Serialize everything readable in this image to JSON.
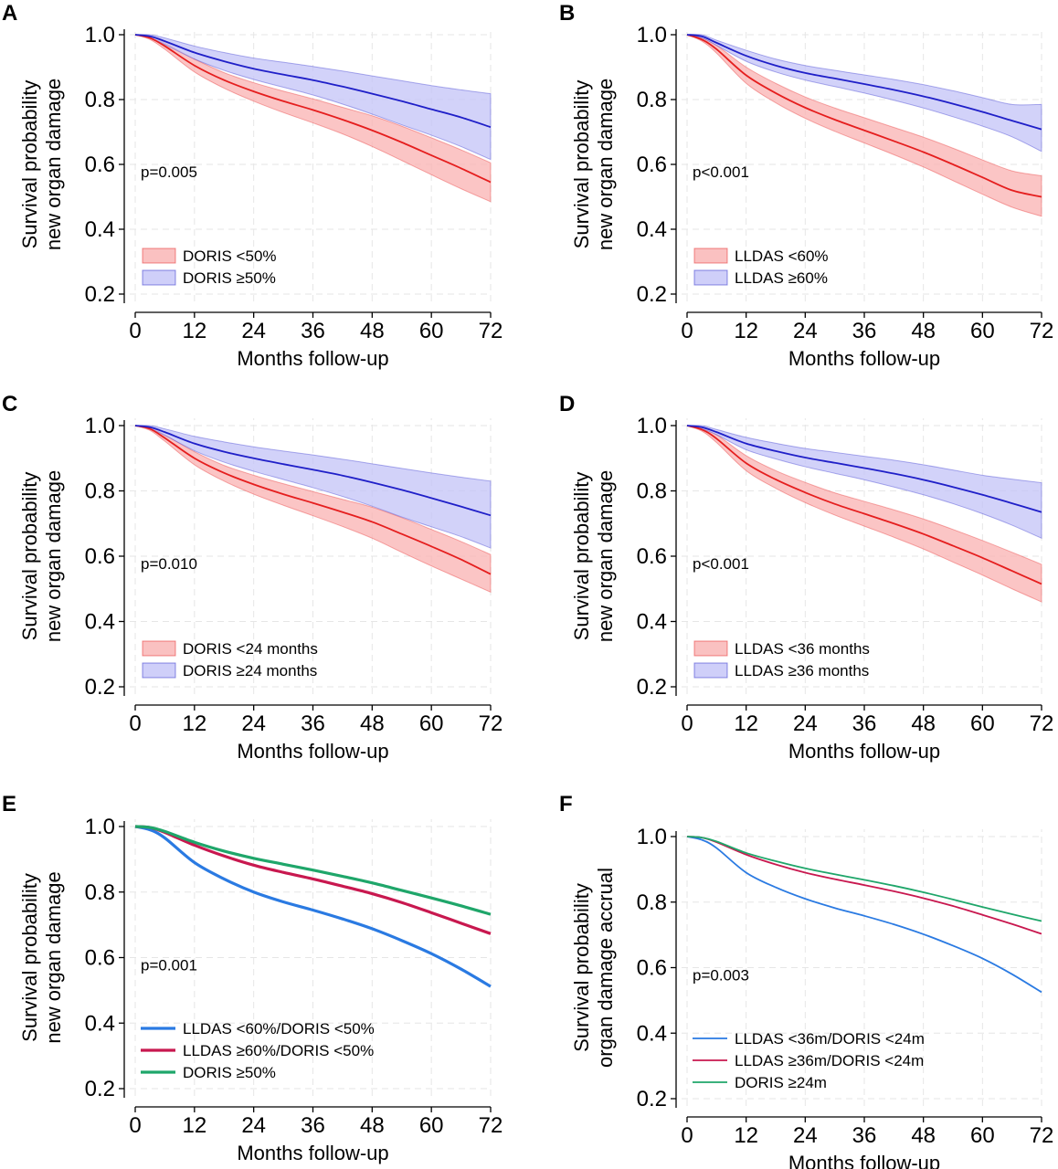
{
  "chart_data": [
    {
      "panel": "A",
      "type": "line",
      "xlabel": "Months follow-up",
      "ylabel": [
        "Survival probability",
        "new organ damage"
      ],
      "xlim": [
        0,
        72
      ],
      "ylim": [
        0.2,
        1.0
      ],
      "xticks": [
        0,
        12,
        24,
        36,
        48,
        60,
        72
      ],
      "yticks": [
        0.2,
        0.4,
        0.6,
        0.8,
        1.0
      ],
      "annotation": "p=0.005",
      "legend_style": "band",
      "series": [
        {
          "name": "DORIS <50%",
          "color": "#e51e1e",
          "fill": "#f9b1b1",
          "x": [
            0,
            3,
            6,
            12,
            18,
            24,
            30,
            36,
            42,
            48,
            54,
            60,
            66,
            72
          ],
          "values": [
            1.0,
            0.99,
            0.965,
            0.905,
            0.86,
            0.825,
            0.795,
            0.768,
            0.738,
            0.705,
            0.668,
            0.628,
            0.588,
            0.545
          ],
          "lower": [
            1.0,
            0.985,
            0.955,
            0.885,
            0.835,
            0.795,
            0.76,
            0.728,
            0.694,
            0.655,
            0.612,
            0.568,
            0.525,
            0.485
          ],
          "upper": [
            1.0,
            0.995,
            0.975,
            0.925,
            0.883,
            0.852,
            0.826,
            0.802,
            0.776,
            0.75,
            0.718,
            0.682,
            0.645,
            0.605
          ]
        },
        {
          "name": "DORIS ≥50%",
          "color": "#1f1fc8",
          "fill": "#c3c3f7",
          "x": [
            0,
            3,
            6,
            12,
            18,
            24,
            30,
            36,
            42,
            48,
            54,
            60,
            66,
            72
          ],
          "values": [
            1.0,
            0.995,
            0.98,
            0.945,
            0.918,
            0.895,
            0.877,
            0.86,
            0.84,
            0.818,
            0.795,
            0.77,
            0.745,
            0.715
          ],
          "lower": [
            1.0,
            0.99,
            0.97,
            0.925,
            0.89,
            0.862,
            0.838,
            0.814,
            0.786,
            0.755,
            0.722,
            0.69,
            0.655,
            0.615
          ],
          "upper": [
            1.0,
            1.0,
            0.99,
            0.965,
            0.945,
            0.928,
            0.915,
            0.902,
            0.888,
            0.873,
            0.858,
            0.843,
            0.83,
            0.818
          ]
        }
      ]
    },
    {
      "panel": "B",
      "type": "line",
      "xlabel": "Months follow-up",
      "ylabel": [
        "Survival probability",
        "new organ damage"
      ],
      "xlim": [
        0,
        72
      ],
      "ylim": [
        0.2,
        1.0
      ],
      "xticks": [
        0,
        12,
        24,
        36,
        48,
        60,
        72
      ],
      "yticks": [
        0.2,
        0.4,
        0.6,
        0.8,
        1.0
      ],
      "annotation": "p<0.001",
      "legend_style": "band",
      "series": [
        {
          "name": "LLDAS <60%",
          "color": "#e51e1e",
          "fill": "#f9b1b1",
          "x": [
            0,
            3,
            6,
            12,
            18,
            24,
            30,
            36,
            42,
            48,
            54,
            60,
            66,
            72
          ],
          "values": [
            1.0,
            0.985,
            0.955,
            0.875,
            0.82,
            0.775,
            0.738,
            0.705,
            0.672,
            0.638,
            0.6,
            0.56,
            0.52,
            0.5
          ],
          "lower": [
            1.0,
            0.98,
            0.943,
            0.85,
            0.79,
            0.742,
            0.702,
            0.666,
            0.63,
            0.592,
            0.55,
            0.508,
            0.468,
            0.44
          ],
          "upper": [
            1.0,
            0.99,
            0.967,
            0.9,
            0.85,
            0.808,
            0.774,
            0.744,
            0.714,
            0.684,
            0.65,
            0.614,
            0.58,
            0.565
          ]
        },
        {
          "name": "LLDAS ≥60%",
          "color": "#1f1fc8",
          "fill": "#c3c3f7",
          "x": [
            0,
            3,
            6,
            12,
            18,
            24,
            30,
            36,
            42,
            48,
            54,
            60,
            66,
            72
          ],
          "values": [
            1.0,
            0.995,
            0.975,
            0.935,
            0.905,
            0.882,
            0.865,
            0.848,
            0.83,
            0.81,
            0.787,
            0.762,
            0.735,
            0.708
          ],
          "lower": [
            1.0,
            0.99,
            0.967,
            0.918,
            0.885,
            0.86,
            0.84,
            0.82,
            0.798,
            0.774,
            0.747,
            0.718,
            0.685,
            0.64
          ],
          "upper": [
            1.0,
            1.0,
            0.983,
            0.952,
            0.925,
            0.905,
            0.89,
            0.876,
            0.862,
            0.846,
            0.827,
            0.806,
            0.785,
            0.785
          ]
        }
      ]
    },
    {
      "panel": "C",
      "type": "line",
      "xlabel": "Months follow-up",
      "ylabel": [
        "Survival probability",
        "new organ damage"
      ],
      "xlim": [
        0,
        72
      ],
      "ylim": [
        0.2,
        1.0
      ],
      "xticks": [
        0,
        12,
        24,
        36,
        48,
        60,
        72
      ],
      "yticks": [
        0.2,
        0.4,
        0.6,
        0.8,
        1.0
      ],
      "annotation": "p=0.010",
      "legend_style": "band",
      "series": [
        {
          "name": "DORIS <24 months",
          "color": "#e51e1e",
          "fill": "#f9b1b1",
          "x": [
            0,
            3,
            6,
            12,
            18,
            24,
            30,
            36,
            42,
            48,
            54,
            60,
            66,
            72
          ],
          "values": [
            1.0,
            0.99,
            0.962,
            0.9,
            0.855,
            0.82,
            0.79,
            0.763,
            0.735,
            0.705,
            0.668,
            0.63,
            0.59,
            0.545
          ],
          "lower": [
            1.0,
            0.985,
            0.952,
            0.88,
            0.83,
            0.79,
            0.756,
            0.724,
            0.691,
            0.655,
            0.612,
            0.57,
            0.53,
            0.49
          ],
          "upper": [
            1.0,
            0.995,
            0.972,
            0.92,
            0.878,
            0.848,
            0.822,
            0.798,
            0.774,
            0.75,
            0.718,
            0.682,
            0.645,
            0.605
          ]
        },
        {
          "name": "DORIS ≥24 months",
          "color": "#1f1fc8",
          "fill": "#c3c3f7",
          "x": [
            0,
            3,
            6,
            12,
            18,
            24,
            30,
            36,
            42,
            48,
            54,
            60,
            66,
            72
          ],
          "values": [
            1.0,
            0.995,
            0.98,
            0.945,
            0.92,
            0.9,
            0.882,
            0.865,
            0.847,
            0.826,
            0.803,
            0.778,
            0.752,
            0.725
          ],
          "lower": [
            1.0,
            0.99,
            0.97,
            0.923,
            0.888,
            0.86,
            0.835,
            0.81,
            0.783,
            0.753,
            0.72,
            0.69,
            0.66,
            0.625
          ],
          "upper": [
            1.0,
            1.0,
            0.99,
            0.967,
            0.95,
            0.935,
            0.922,
            0.91,
            0.897,
            0.883,
            0.869,
            0.855,
            0.842,
            0.83
          ]
        }
      ]
    },
    {
      "panel": "D",
      "type": "line",
      "xlabel": "Months follow-up",
      "ylabel": [
        "Survival probability",
        "new organ damage"
      ],
      "xlim": [
        0,
        72
      ],
      "ylim": [
        0.2,
        1.0
      ],
      "xticks": [
        0,
        12,
        24,
        36,
        48,
        60,
        72
      ],
      "yticks": [
        0.2,
        0.4,
        0.6,
        0.8,
        1.0
      ],
      "annotation": "p<0.001",
      "legend_style": "band",
      "series": [
        {
          "name": "LLDAS <36 months",
          "color": "#e51e1e",
          "fill": "#f9b1b1",
          "x": [
            0,
            3,
            6,
            12,
            18,
            24,
            30,
            36,
            42,
            48,
            54,
            60,
            66,
            72
          ],
          "values": [
            1.0,
            0.988,
            0.96,
            0.885,
            0.835,
            0.795,
            0.76,
            0.73,
            0.7,
            0.668,
            0.632,
            0.595,
            0.555,
            0.515
          ],
          "lower": [
            1.0,
            0.983,
            0.948,
            0.862,
            0.808,
            0.764,
            0.726,
            0.692,
            0.658,
            0.622,
            0.582,
            0.542,
            0.5,
            0.46
          ],
          "upper": [
            1.0,
            0.993,
            0.972,
            0.908,
            0.862,
            0.826,
            0.794,
            0.768,
            0.742,
            0.714,
            0.682,
            0.648,
            0.612,
            0.575
          ]
        },
        {
          "name": "LLDAS ≥36 months",
          "color": "#1f1fc8",
          "fill": "#c3c3f7",
          "x": [
            0,
            3,
            6,
            12,
            18,
            24,
            30,
            36,
            42,
            48,
            54,
            60,
            66,
            72
          ],
          "values": [
            1.0,
            0.995,
            0.98,
            0.945,
            0.922,
            0.902,
            0.886,
            0.87,
            0.853,
            0.834,
            0.812,
            0.788,
            0.762,
            0.735
          ],
          "lower": [
            1.0,
            0.99,
            0.972,
            0.926,
            0.898,
            0.874,
            0.854,
            0.834,
            0.812,
            0.788,
            0.761,
            0.73,
            0.695,
            0.655
          ],
          "upper": [
            1.0,
            1.0,
            0.988,
            0.964,
            0.946,
            0.93,
            0.918,
            0.906,
            0.894,
            0.88,
            0.864,
            0.848,
            0.836,
            0.825
          ]
        }
      ]
    },
    {
      "panel": "E",
      "type": "line",
      "xlabel": "Months follow-up",
      "ylabel": [
        "Survival probability",
        "new organ damage"
      ],
      "xlim": [
        0,
        72
      ],
      "ylim": [
        0.2,
        1.0
      ],
      "xticks": [
        0,
        12,
        24,
        36,
        48,
        60,
        72
      ],
      "yticks": [
        0.2,
        0.4,
        0.6,
        0.8,
        1.0
      ],
      "annotation": "p=0.001",
      "legend_style": "line-thick",
      "series": [
        {
          "name": "LLDAS <60%/DORIS <50%",
          "color": "#2a7ae2",
          "x": [
            0,
            3,
            6,
            12,
            18,
            24,
            30,
            36,
            42,
            48,
            54,
            60,
            66,
            72
          ],
          "values": [
            1.0,
            0.99,
            0.965,
            0.89,
            0.84,
            0.8,
            0.77,
            0.745,
            0.718,
            0.688,
            0.652,
            0.612,
            0.565,
            0.512
          ]
        },
        {
          "name": "LLDAS ≥60%/DORIS <50%",
          "color": "#c8184f",
          "x": [
            0,
            3,
            6,
            12,
            18,
            24,
            30,
            36,
            42,
            48,
            54,
            60,
            66,
            72
          ],
          "values": [
            1.0,
            0.997,
            0.982,
            0.943,
            0.91,
            0.882,
            0.86,
            0.84,
            0.818,
            0.795,
            0.768,
            0.737,
            0.705,
            0.673
          ]
        },
        {
          "name": "DORIS ≥50%",
          "color": "#1fa66a",
          "x": [
            0,
            3,
            6,
            12,
            18,
            24,
            30,
            36,
            42,
            48,
            54,
            60,
            66,
            72
          ],
          "values": [
            1.0,
            0.997,
            0.985,
            0.952,
            0.925,
            0.903,
            0.885,
            0.867,
            0.848,
            0.828,
            0.805,
            0.782,
            0.758,
            0.732
          ]
        }
      ]
    },
    {
      "panel": "F",
      "type": "line",
      "xlabel": "Months follow-up",
      "ylabel": [
        "Survival probability",
        "organ damage accrual"
      ],
      "xlim": [
        0,
        72
      ],
      "ylim": [
        0.2,
        1.0
      ],
      "xticks": [
        0,
        12,
        24,
        36,
        48,
        60,
        72
      ],
      "yticks": [
        0.2,
        0.4,
        0.6,
        0.8,
        1.0
      ],
      "annotation": "p=0.003",
      "legend_style": "line-thin",
      "series": [
        {
          "name": "LLDAS <36m/DORIS <24m",
          "color": "#2a7ae2",
          "x": [
            0,
            3,
            6,
            12,
            18,
            24,
            30,
            36,
            42,
            48,
            54,
            60,
            66,
            72
          ],
          "values": [
            1.0,
            0.99,
            0.965,
            0.89,
            0.845,
            0.81,
            0.782,
            0.758,
            0.732,
            0.702,
            0.667,
            0.628,
            0.58,
            0.525
          ]
        },
        {
          "name": "LLDAS ≥36m/DORIS <24m",
          "color": "#c8184f",
          "x": [
            0,
            3,
            6,
            12,
            18,
            24,
            30,
            36,
            42,
            48,
            54,
            60,
            66,
            72
          ],
          "values": [
            1.0,
            0.997,
            0.983,
            0.945,
            0.915,
            0.89,
            0.87,
            0.852,
            0.833,
            0.812,
            0.788,
            0.761,
            0.733,
            0.703
          ]
        },
        {
          "name": "DORIS ≥24m",
          "color": "#1fa66a",
          "x": [
            0,
            3,
            6,
            12,
            18,
            24,
            30,
            36,
            42,
            48,
            54,
            60,
            66,
            72
          ],
          "values": [
            1.0,
            0.997,
            0.985,
            0.95,
            0.925,
            0.903,
            0.885,
            0.868,
            0.85,
            0.83,
            0.808,
            0.785,
            0.763,
            0.742
          ]
        }
      ]
    }
  ]
}
